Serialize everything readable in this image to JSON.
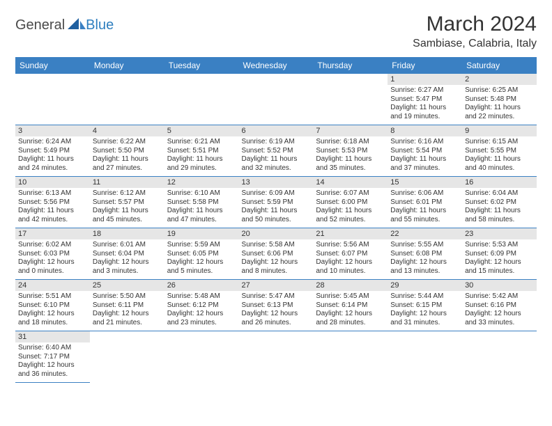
{
  "brand": {
    "part1": "General",
    "part2": "Blue"
  },
  "header": {
    "title": "March 2024",
    "location": "Sambiase, Calabria, Italy"
  },
  "colors": {
    "accent": "#3a80c3",
    "daynum_bg": "#e6e6e6",
    "text": "#333333",
    "bg": "#ffffff"
  },
  "weekdays": [
    "Sunday",
    "Monday",
    "Tuesday",
    "Wednesday",
    "Thursday",
    "Friday",
    "Saturday"
  ],
  "layout": {
    "first_weekday_index": 5,
    "days_in_month": 31
  },
  "days": {
    "1": {
      "sunrise": "6:27 AM",
      "sunset": "5:47 PM",
      "daylight": "11 hours and 19 minutes."
    },
    "2": {
      "sunrise": "6:25 AM",
      "sunset": "5:48 PM",
      "daylight": "11 hours and 22 minutes."
    },
    "3": {
      "sunrise": "6:24 AM",
      "sunset": "5:49 PM",
      "daylight": "11 hours and 24 minutes."
    },
    "4": {
      "sunrise": "6:22 AM",
      "sunset": "5:50 PM",
      "daylight": "11 hours and 27 minutes."
    },
    "5": {
      "sunrise": "6:21 AM",
      "sunset": "5:51 PM",
      "daylight": "11 hours and 29 minutes."
    },
    "6": {
      "sunrise": "6:19 AM",
      "sunset": "5:52 PM",
      "daylight": "11 hours and 32 minutes."
    },
    "7": {
      "sunrise": "6:18 AM",
      "sunset": "5:53 PM",
      "daylight": "11 hours and 35 minutes."
    },
    "8": {
      "sunrise": "6:16 AM",
      "sunset": "5:54 PM",
      "daylight": "11 hours and 37 minutes."
    },
    "9": {
      "sunrise": "6:15 AM",
      "sunset": "5:55 PM",
      "daylight": "11 hours and 40 minutes."
    },
    "10": {
      "sunrise": "6:13 AM",
      "sunset": "5:56 PM",
      "daylight": "11 hours and 42 minutes."
    },
    "11": {
      "sunrise": "6:12 AM",
      "sunset": "5:57 PM",
      "daylight": "11 hours and 45 minutes."
    },
    "12": {
      "sunrise": "6:10 AM",
      "sunset": "5:58 PM",
      "daylight": "11 hours and 47 minutes."
    },
    "13": {
      "sunrise": "6:09 AM",
      "sunset": "5:59 PM",
      "daylight": "11 hours and 50 minutes."
    },
    "14": {
      "sunrise": "6:07 AM",
      "sunset": "6:00 PM",
      "daylight": "11 hours and 52 minutes."
    },
    "15": {
      "sunrise": "6:06 AM",
      "sunset": "6:01 PM",
      "daylight": "11 hours and 55 minutes."
    },
    "16": {
      "sunrise": "6:04 AM",
      "sunset": "6:02 PM",
      "daylight": "11 hours and 58 minutes."
    },
    "17": {
      "sunrise": "6:02 AM",
      "sunset": "6:03 PM",
      "daylight": "12 hours and 0 minutes."
    },
    "18": {
      "sunrise": "6:01 AM",
      "sunset": "6:04 PM",
      "daylight": "12 hours and 3 minutes."
    },
    "19": {
      "sunrise": "5:59 AM",
      "sunset": "6:05 PM",
      "daylight": "12 hours and 5 minutes."
    },
    "20": {
      "sunrise": "5:58 AM",
      "sunset": "6:06 PM",
      "daylight": "12 hours and 8 minutes."
    },
    "21": {
      "sunrise": "5:56 AM",
      "sunset": "6:07 PM",
      "daylight": "12 hours and 10 minutes."
    },
    "22": {
      "sunrise": "5:55 AM",
      "sunset": "6:08 PM",
      "daylight": "12 hours and 13 minutes."
    },
    "23": {
      "sunrise": "5:53 AM",
      "sunset": "6:09 PM",
      "daylight": "12 hours and 15 minutes."
    },
    "24": {
      "sunrise": "5:51 AM",
      "sunset": "6:10 PM",
      "daylight": "12 hours and 18 minutes."
    },
    "25": {
      "sunrise": "5:50 AM",
      "sunset": "6:11 PM",
      "daylight": "12 hours and 21 minutes."
    },
    "26": {
      "sunrise": "5:48 AM",
      "sunset": "6:12 PM",
      "daylight": "12 hours and 23 minutes."
    },
    "27": {
      "sunrise": "5:47 AM",
      "sunset": "6:13 PM",
      "daylight": "12 hours and 26 minutes."
    },
    "28": {
      "sunrise": "5:45 AM",
      "sunset": "6:14 PM",
      "daylight": "12 hours and 28 minutes."
    },
    "29": {
      "sunrise": "5:44 AM",
      "sunset": "6:15 PM",
      "daylight": "12 hours and 31 minutes."
    },
    "30": {
      "sunrise": "5:42 AM",
      "sunset": "6:16 PM",
      "daylight": "12 hours and 33 minutes."
    },
    "31": {
      "sunrise": "6:40 AM",
      "sunset": "7:17 PM",
      "daylight": "12 hours and 36 minutes."
    }
  },
  "labels": {
    "sunrise": "Sunrise:",
    "sunset": "Sunset:",
    "daylight": "Daylight:"
  }
}
